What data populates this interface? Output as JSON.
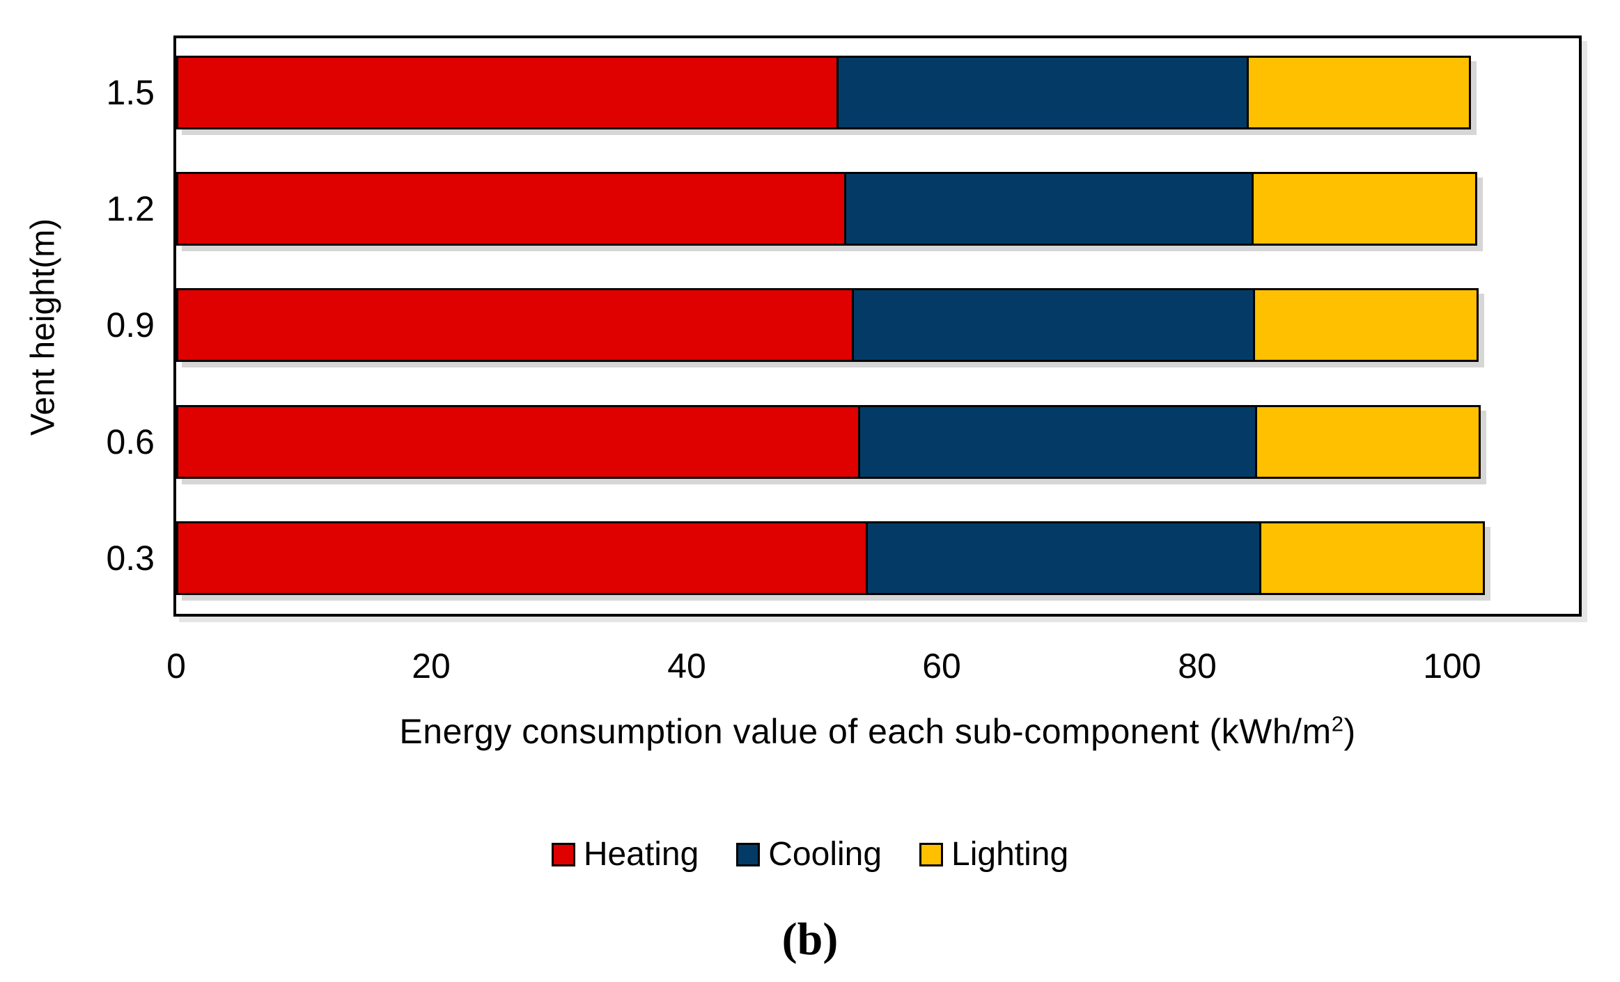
{
  "figure": {
    "caption": "(b)"
  },
  "chart_data": {
    "type": "bar",
    "orientation": "horizontal",
    "stacked": true,
    "title": "",
    "ylabel": "Vent height(m)",
    "xlabel": "Energy consumption value of each sub-component (kWh/m2)",
    "xlabel_parts": {
      "prefix": "Energy consumption value of each sub-component (kWh/m",
      "superscript": "2",
      "suffix": ")"
    },
    "categories": [
      "1.5",
      "1.2",
      "0.9",
      "0.6",
      "0.3"
    ],
    "series": [
      {
        "name": "Heating",
        "color": "#DF0000",
        "values": [
          51.9,
          52.5,
          53.1,
          53.6,
          54.2
        ]
      },
      {
        "name": "Cooling",
        "color": "#043B66",
        "values": [
          32.3,
          32.1,
          31.6,
          31.3,
          31.0
        ]
      },
      {
        "name": "Lighting",
        "color": "#FFC000",
        "values": [
          17.6,
          17.7,
          17.7,
          17.7,
          17.7
        ]
      }
    ],
    "totals": [
      101.8,
      102.3,
      102.4,
      102.6,
      102.9
    ],
    "x_ticks": [
      "0",
      "20",
      "40",
      "60",
      "80",
      "100"
    ],
    "xlim": [
      0,
      110.2
    ],
    "grid": false,
    "legend_position": "bottom",
    "bar_outline_color": "#000000",
    "background_color": "#FFFFFF"
  }
}
